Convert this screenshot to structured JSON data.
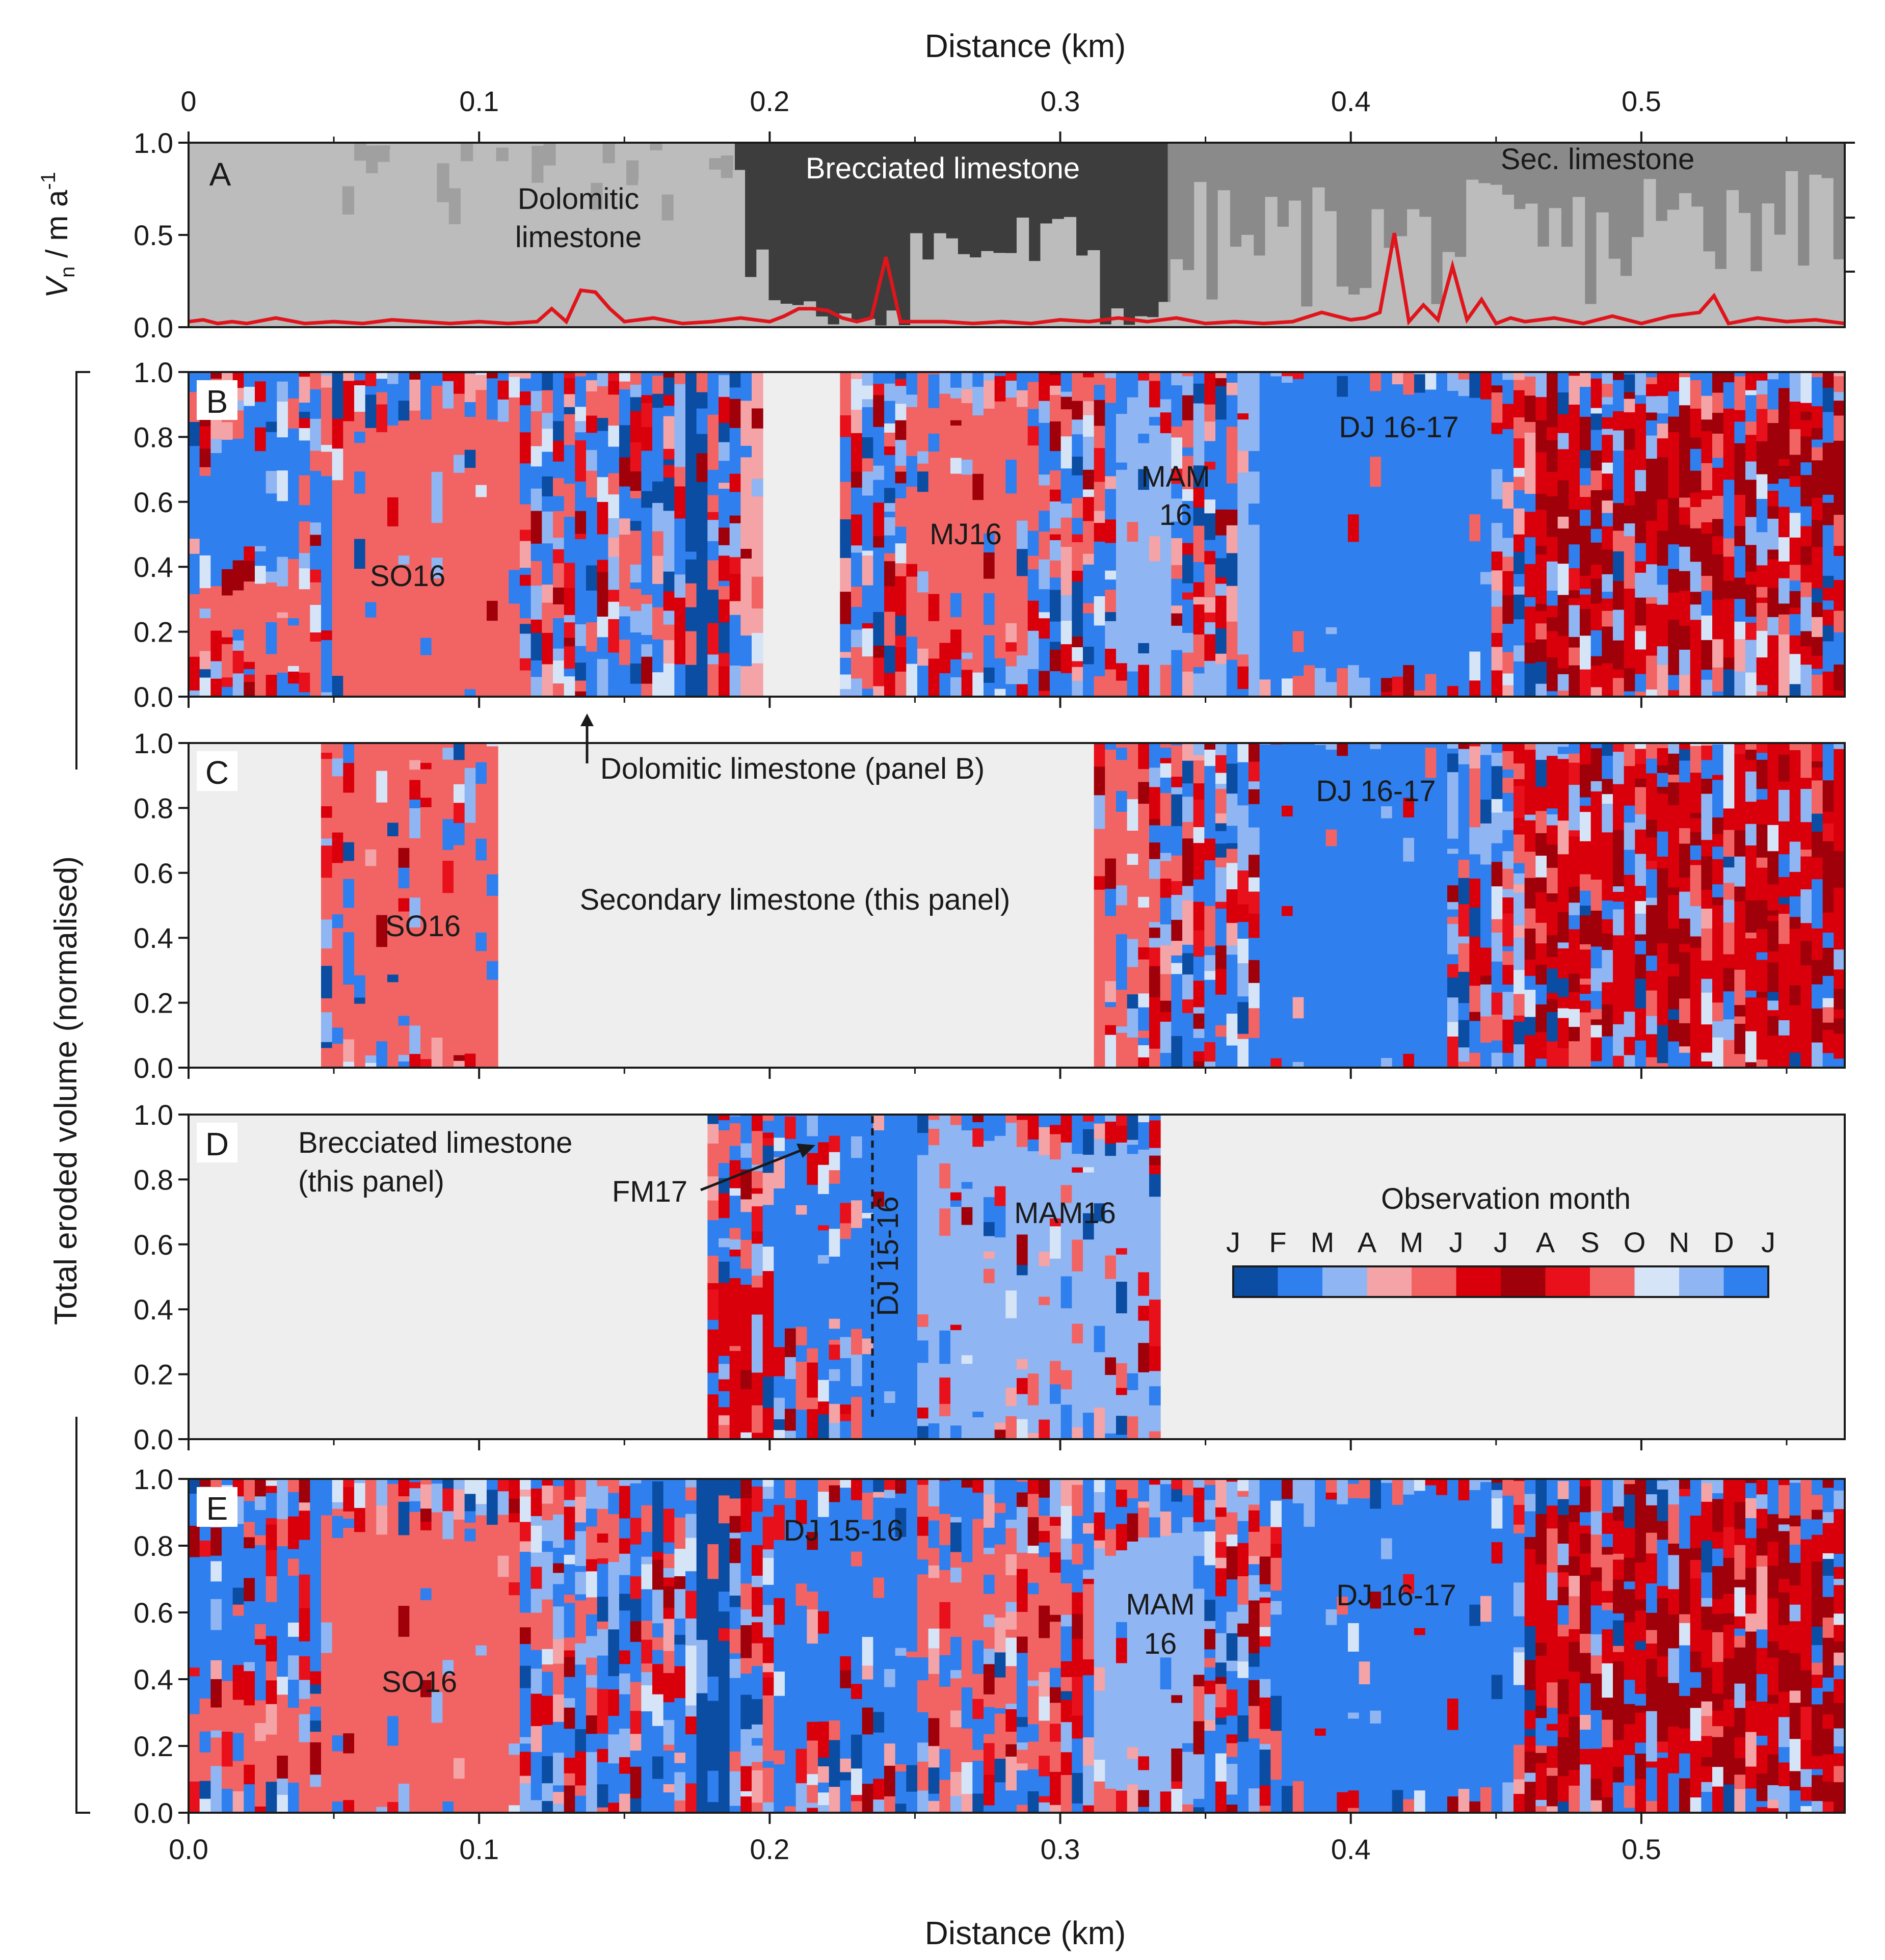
{
  "figure": {
    "top_axis_label": "Distance (km)",
    "bottom_axis_label": "Distance (km)",
    "left_axis_label": "Total eroded volume (normalised)",
    "panelA_ylabel_main": "V",
    "panelA_ylabel_sub": "n",
    "panelA_ylabel_unit": " / m a",
    "panelA_ylabel_exp": "-1"
  },
  "colors": {
    "months": [
      "#0b4da2",
      "#2f7fef",
      "#8fb5f2",
      "#f4a3a6",
      "#f26464",
      "#d9000b",
      "#9f0009",
      "#e8101a",
      "#f26464",
      "#d6e4f7",
      "#8fb5f2",
      "#2f7fef"
    ],
    "panel_bg": "#eeeeee",
    "rate_line": "#e0151c",
    "rock_dolomitic": "#bcbcbc",
    "rock_sec": "#8a8a8a",
    "rock_breccia": "#3d3d3d"
  },
  "chart_data": [
    {
      "id": "A",
      "type": "area",
      "label": "A",
      "ylim": [
        0,
        1
      ],
      "yticks": [
        "0.0",
        "0.5",
        "1.0"
      ],
      "xlim": [
        0,
        0.57
      ],
      "top_xticks": [
        "0",
        "0.1",
        "0.2",
        "0.3",
        "0.4",
        "0.5"
      ],
      "annotations": [
        "Dolomitic",
        "limestone",
        "Brecciated limestone",
        "Sec. limestone"
      ],
      "rate_series": {
        "name": "Vn",
        "x": [
          0,
          0.005,
          0.01,
          0.015,
          0.02,
          0.03,
          0.04,
          0.05,
          0.06,
          0.07,
          0.08,
          0.09,
          0.1,
          0.11,
          0.12,
          0.125,
          0.13,
          0.135,
          0.14,
          0.145,
          0.15,
          0.16,
          0.17,
          0.18,
          0.19,
          0.2,
          0.205,
          0.21,
          0.215,
          0.22,
          0.225,
          0.23,
          0.235,
          0.24,
          0.245,
          0.25,
          0.26,
          0.27,
          0.28,
          0.29,
          0.3,
          0.31,
          0.32,
          0.33,
          0.34,
          0.35,
          0.36,
          0.37,
          0.38,
          0.39,
          0.4,
          0.405,
          0.41,
          0.415,
          0.42,
          0.425,
          0.43,
          0.435,
          0.44,
          0.445,
          0.45,
          0.455,
          0.46,
          0.47,
          0.48,
          0.49,
          0.5,
          0.51,
          0.52,
          0.525,
          0.53,
          0.54,
          0.55,
          0.56,
          0.57
        ],
        "y": [
          0.03,
          0.04,
          0.02,
          0.03,
          0.02,
          0.05,
          0.02,
          0.03,
          0.02,
          0.04,
          0.03,
          0.02,
          0.03,
          0.02,
          0.03,
          0.1,
          0.03,
          0.2,
          0.19,
          0.1,
          0.03,
          0.05,
          0.02,
          0.03,
          0.05,
          0.03,
          0.06,
          0.1,
          0.1,
          0.09,
          0.05,
          0.03,
          0.05,
          0.38,
          0.03,
          0.03,
          0.03,
          0.02,
          0.03,
          0.02,
          0.04,
          0.03,
          0.05,
          0.03,
          0.05,
          0.02,
          0.03,
          0.02,
          0.03,
          0.08,
          0.04,
          0.05,
          0.08,
          0.51,
          0.03,
          0.12,
          0.04,
          0.33,
          0.04,
          0.15,
          0.02,
          0.05,
          0.03,
          0.05,
          0.02,
          0.06,
          0.02,
          0.06,
          0.08,
          0.17,
          0.02,
          0.05,
          0.03,
          0.04,
          0.02
        ]
      }
    },
    {
      "id": "B",
      "type": "heatmap",
      "label": "B",
      "ylim": [
        0,
        1
      ],
      "yticks": [
        "0.0",
        "0.2",
        "0.4",
        "0.6",
        "0.8",
        "1.0"
      ],
      "xlim": [
        0,
        0.57
      ],
      "empty_ranges": [
        [
          0.198,
          0.224
        ]
      ],
      "labels": [
        "SO16",
        "MJ16",
        "MAM",
        "16",
        "DJ 16-17"
      ],
      "callout": "Dolomitic limestone (panel B)"
    },
    {
      "id": "C",
      "type": "heatmap",
      "label": "C",
      "ylim": [
        0,
        1
      ],
      "yticks": [
        "0.0",
        "0.2",
        "0.4",
        "0.6",
        "0.8",
        "1.0"
      ],
      "xlim": [
        0,
        0.57
      ],
      "empty_ranges": [
        [
          0,
          0.045
        ],
        [
          0.106,
          0.311
        ]
      ],
      "labels": [
        "SO16",
        "DJ 16-17"
      ],
      "callout": "Secondary limestone (this panel)"
    },
    {
      "id": "D",
      "type": "heatmap",
      "label": "D",
      "ylim": [
        0,
        1
      ],
      "yticks": [
        "0.0",
        "0.2",
        "0.4",
        "0.6",
        "0.8",
        "1.0"
      ],
      "xlim": [
        0,
        0.57
      ],
      "empty_ranges": [
        [
          0,
          0.179
        ],
        [
          0.334,
          0.57
        ]
      ],
      "labels": [
        "MAM16",
        "DJ 15-16",
        "FM17"
      ],
      "callout": [
        "Brecciated limestone",
        "(this panel)"
      ],
      "legend": {
        "title": "Observation month",
        "months": [
          "J",
          "F",
          "M",
          "A",
          "M",
          "J",
          "J",
          "A",
          "S",
          "O",
          "N",
          "D",
          "J"
        ]
      }
    },
    {
      "id": "E",
      "type": "heatmap",
      "label": "E",
      "ylim": [
        0,
        1
      ],
      "yticks": [
        "0.0",
        "0.2",
        "0.4",
        "0.6",
        "0.8",
        "1.0"
      ],
      "xlim": [
        0,
        0.57
      ],
      "bottom_xticks": [
        "0.0",
        "0.1",
        "0.2",
        "0.3",
        "0.4",
        "0.5"
      ],
      "empty_ranges": [],
      "labels": [
        "SO16",
        "DJ 15-16",
        "MAM",
        "16",
        "DJ 16-17"
      ]
    }
  ]
}
